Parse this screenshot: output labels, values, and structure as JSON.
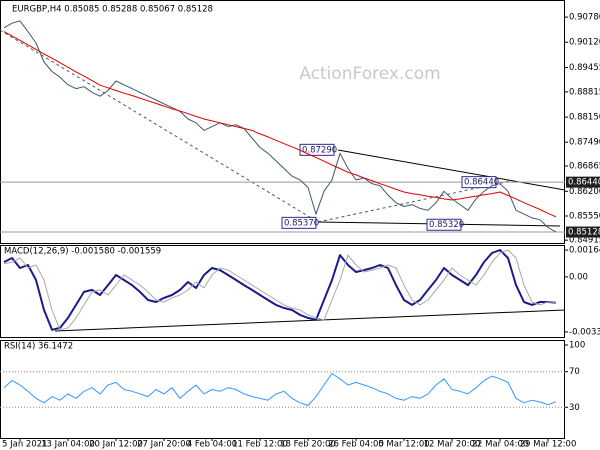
{
  "chart_data": [
    {
      "type": "line",
      "title": "EURGBP,H4  0.85085 0.85288 0.85067 0.85128",
      "watermark": "ActionForex.com",
      "categories": [
        null,
        null,
        "5 Jan 2021",
        null,
        null,
        null,
        null,
        null,
        "13 Jan 04:00",
        null,
        null,
        null,
        null,
        null,
        "20 Jan 12:00",
        null,
        null,
        null,
        null,
        null,
        "27 Jan 20:00",
        null,
        null,
        null,
        null,
        null,
        "4 Feb 04:00",
        null,
        null,
        null,
        null,
        null,
        "11 Feb 12:00",
        null,
        null,
        null,
        null,
        null,
        "18 Feb 20:00",
        null,
        null,
        null,
        null,
        null,
        "26 Feb 04:00",
        null,
        null,
        null,
        null,
        null,
        "5 Mar 12:00",
        null,
        null,
        null,
        null,
        null,
        "12 Mar 20:00",
        null,
        null,
        null,
        null,
        null,
        "22 Mar 04:00",
        null,
        null,
        null,
        null,
        null,
        "29 Mar 12:00",
        null
      ],
      "series": [
        {
          "color": "#3c5a6e",
          "values": [
            0.905,
            0.9062,
            0.9068,
            0.904,
            0.901,
            0.896,
            0.8935,
            0.892,
            0.89,
            0.889,
            0.8895,
            0.888,
            0.887,
            0.8885,
            0.891,
            0.89,
            0.889,
            0.888,
            0.887,
            0.886,
            0.885,
            0.884,
            0.883,
            0.881,
            0.88,
            0.878,
            0.879,
            0.88,
            0.879,
            0.8795,
            0.8785,
            0.876,
            0.8735,
            0.872,
            0.87,
            0.868,
            0.866,
            0.865,
            0.863,
            0.856,
            0.862,
            0.865,
            0.872,
            0.868,
            0.865,
            0.8655,
            0.864,
            0.8635,
            0.861,
            0.859,
            0.858,
            0.8585,
            0.8575,
            0.857,
            0.859,
            0.862,
            0.86,
            0.8585,
            0.857,
            0.86,
            0.862,
            0.8635,
            0.864,
            0.862,
            0.857,
            0.856,
            0.855,
            0.8545,
            0.8525,
            0.85128
          ]
        },
        {
          "color": "#e00000",
          "values": [
            0.904,
            0.9028,
            0.9017,
            0.9005,
            0.8993,
            0.8981,
            0.897,
            0.8958,
            0.8946,
            0.8934,
            0.8923,
            0.8911,
            0.8899,
            0.8892,
            0.8885,
            0.8878,
            0.8872,
            0.8865,
            0.8858,
            0.8851,
            0.8844,
            0.8837,
            0.8831,
            0.8824,
            0.8817,
            0.881,
            0.8805,
            0.88,
            0.8795,
            0.879,
            0.8785,
            0.878,
            0.8771,
            0.8763,
            0.8754,
            0.8745,
            0.8737,
            0.8728,
            0.8718,
            0.8709,
            0.8699,
            0.8689,
            0.868,
            0.867,
            0.8663,
            0.8655,
            0.8648,
            0.864,
            0.8633,
            0.8625,
            0.8618,
            0.8614,
            0.8611,
            0.8607,
            0.8604,
            0.86,
            0.8597,
            0.86,
            0.8604,
            0.8607,
            0.8611,
            0.8614,
            0.8618,
            0.8609,
            0.86,
            0.859,
            0.8581,
            0.8572,
            0.8562,
            0.8553
          ]
        }
      ],
      "ylim": [
        0.8484,
        0.9123
      ],
      "yticks": [
        {
          "value": 0.9078,
          "label": "0.90780"
        },
        {
          "value": 0.9012,
          "label": "0.90120"
        },
        {
          "value": 0.89455,
          "label": "0.89455"
        },
        {
          "value": 0.88815,
          "label": "0.88815"
        },
        {
          "value": 0.8815,
          "label": "0.88150"
        },
        {
          "value": 0.8749,
          "label": "0.87490"
        },
        {
          "value": 0.86865,
          "label": "0.86865"
        },
        {
          "value": 0.862,
          "label": "0.86200"
        },
        {
          "value": 0.8555,
          "label": "0.85550"
        },
        {
          "value": 0.84915,
          "label": "0.84915"
        }
      ],
      "levels": [
        {
          "value": 0.8644,
          "label": "0.86440"
        },
        {
          "value": 0.85128,
          "label": "0.85128"
        }
      ],
      "annotations": [
        {
          "value": 0.8729,
          "label": "0.87290"
        },
        {
          "value": 0.8537,
          "label": "0.85370"
        },
        {
          "value": 0.8532,
          "label": "0.85320"
        },
        {
          "value": 0.8644,
          "label": "0.86440"
        }
      ]
    },
    {
      "type": "line",
      "title": "MACD(12,26,9) -0.001580 -0.001559",
      "series": [
        {
          "color": "#1a1a8c",
          "width": 2,
          "values": [
            0.00091,
            0.00116,
            0.00055,
            0.00073,
            -0.00019,
            -0.00203,
            -0.00325,
            -0.00313,
            -0.00252,
            -0.00172,
            -0.00092,
            -0.0008,
            -0.00111,
            -0.0005,
            0.00012,
            -0.00019,
            -0.0005,
            -0.00092,
            -0.00142,
            -0.00154,
            -0.00129,
            -0.00111,
            -0.0008,
            -0.00031,
            -0.00068,
            0.00012,
            0.00055,
            0.00042,
            0.00012,
            -0.00019,
            -0.0005,
            -0.0008,
            -0.00111,
            -0.00142,
            -0.00172,
            -0.00191,
            -0.00203,
            -0.00233,
            -0.00252,
            -0.00264,
            -0.00142,
            -0.00019,
            0.00134,
            0.00073,
            0.0003,
            0.00042,
            0.00055,
            0.00073,
            0.00055,
            -0.0005,
            -0.00142,
            -0.00172,
            -0.00142,
            -0.0008,
            -0.00019,
            0.00055,
            0.00012,
            -0.00019,
            -0.0005,
            0.00012,
            0.00091,
            0.00147,
            0.00165,
            0.00116,
            -0.0005,
            -0.00154,
            -0.00172,
            -0.00154,
            -0.00154,
            -0.00158
          ]
        },
        {
          "color": "#a8a8a8",
          "width": 1,
          "values": [
            0.0008,
            0.00091,
            0.00116,
            0.00055,
            0.00073,
            -0.00019,
            -0.00203,
            -0.00325,
            -0.00313,
            -0.00252,
            -0.00172,
            -0.00092,
            -0.0008,
            -0.00111,
            -0.0005,
            0.00012,
            -0.00019,
            -0.0005,
            -0.00092,
            -0.00142,
            -0.00154,
            -0.00129,
            -0.00111,
            -0.0008,
            -0.00031,
            -0.00068,
            0.00012,
            0.00055,
            0.00042,
            0.00012,
            -0.00019,
            -0.0005,
            -0.0008,
            -0.00111,
            -0.00142,
            -0.00172,
            -0.00191,
            -0.00203,
            -0.00233,
            -0.00252,
            -0.00264,
            -0.00142,
            -0.00019,
            0.00134,
            0.00073,
            0.0003,
            0.00042,
            0.00055,
            0.00073,
            0.00055,
            -0.0005,
            -0.00142,
            -0.00172,
            -0.00142,
            -0.0008,
            -0.00019,
            0.00055,
            0.00012,
            -0.00019,
            -0.0005,
            0.00012,
            0.00091,
            0.00147,
            0.00165,
            0.00116,
            -0.0005,
            -0.00154,
            -0.00172,
            -0.00154,
            -0.001559
          ]
        }
      ],
      "ylim": [
        -0.00369,
        0.00196
      ],
      "yticks": [
        {
          "value": 0.001648,
          "label": "0.001648"
        },
        {
          "value": 0,
          "label": "0.00"
        },
        {
          "value": -0.003379,
          "label": "-0.003379"
        }
      ]
    },
    {
      "type": "line",
      "title": "RSI(14) 36.1472",
      "series": [
        {
          "color": "#3399ff",
          "width": 1,
          "values": [
            52,
            60,
            55,
            48,
            40,
            35,
            42,
            38,
            45,
            40,
            48,
            52,
            45,
            55,
            58,
            50,
            48,
            45,
            42,
            50,
            45,
            52,
            40,
            48,
            55,
            45,
            50,
            48,
            52,
            50,
            45,
            42,
            40,
            38,
            45,
            48,
            40,
            35,
            32,
            42,
            55,
            68,
            62,
            55,
            58,
            55,
            52,
            48,
            45,
            40,
            38,
            42,
            40,
            45,
            55,
            62,
            50,
            48,
            45,
            52,
            60,
            65,
            62,
            58,
            40,
            35,
            38,
            36,
            33,
            36.1472
          ]
        }
      ],
      "ylim": [
        -4.5,
        105.6
      ],
      "yticks": [
        100,
        70,
        30
      ],
      "grid": true
    }
  ]
}
